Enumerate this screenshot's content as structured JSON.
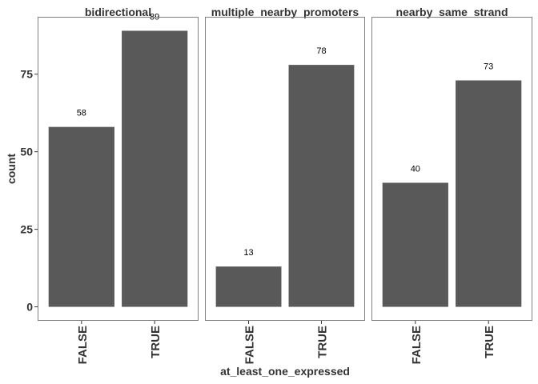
{
  "chart_data": {
    "type": "bar",
    "xlabel": "at_least_one_expressed",
    "ylabel": "count",
    "ylim": [
      -4.5,
      93.5
    ],
    "yticks": [
      "0",
      "25",
      "50",
      "75"
    ],
    "grid": false,
    "bar_color": "#595959",
    "panel_border_color": "#7f7f7f",
    "facets": [
      {
        "title": "bidirectional",
        "categories": [
          "FALSE",
          "TRUE"
        ],
        "values": [
          58,
          89
        ],
        "labels": [
          "58",
          "89"
        ]
      },
      {
        "title": "multiple_nearby_promoters",
        "categories": [
          "FALSE",
          "TRUE"
        ],
        "values": [
          13,
          78
        ],
        "labels": [
          "13",
          "78"
        ]
      },
      {
        "title": "nearby_same_strand",
        "categories": [
          "FALSE",
          "TRUE"
        ],
        "values": [
          40,
          73
        ],
        "labels": [
          "40",
          "73"
        ]
      }
    ]
  }
}
